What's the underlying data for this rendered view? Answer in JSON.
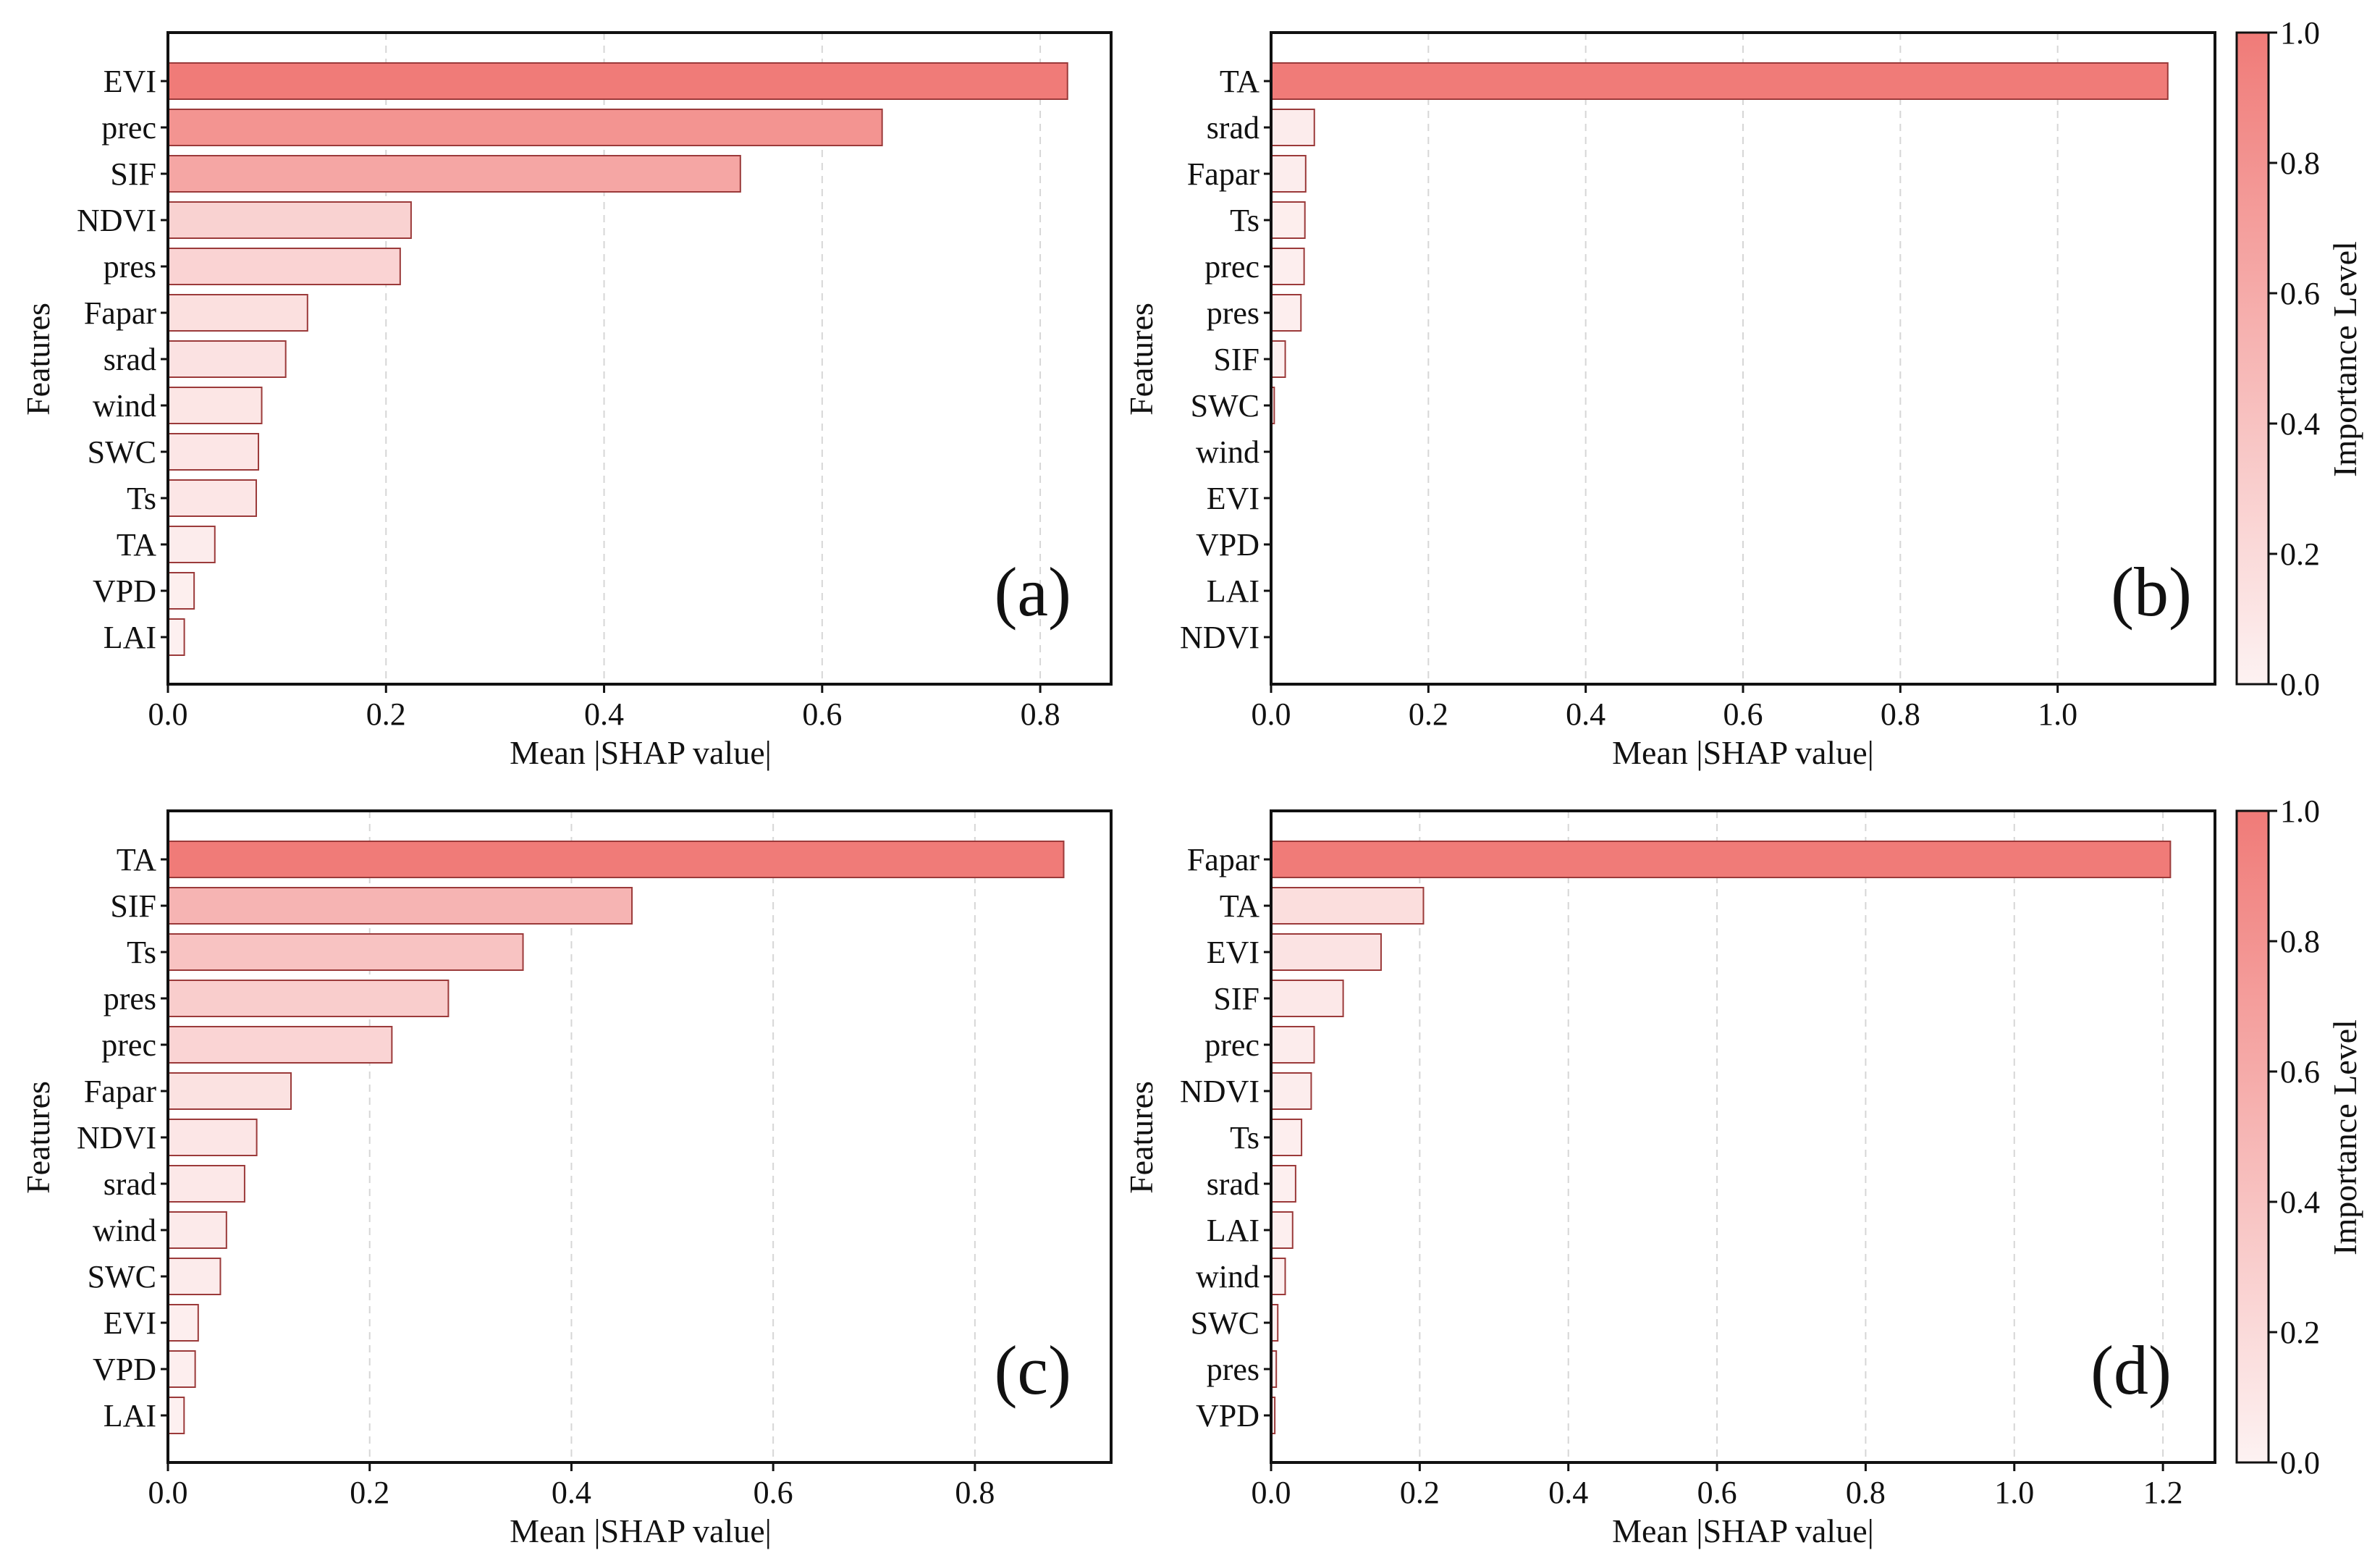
{
  "chart_data": [
    {
      "type": "bar",
      "orientation": "horizontal",
      "panel_label": "(a)",
      "xlabel": "Mean |SHAP value|",
      "ylabel": "Features",
      "xlim": [
        0,
        0.865
      ],
      "xticks": [
        0,
        0.2,
        0.4,
        0.6,
        0.8
      ],
      "xtick_labels": [
        "0.0",
        "0.2",
        "0.4",
        "0.6",
        "0.8"
      ],
      "grid": "vertical dashed",
      "categories": [
        "EVI",
        "prec",
        "SIF",
        "NDVI",
        "pres",
        "Fapar",
        "srad",
        "wind",
        "SWC",
        "Ts",
        "TA",
        "VPD",
        "LAI"
      ],
      "values": [
        0.825,
        0.655,
        0.525,
        0.223,
        0.213,
        0.128,
        0.108,
        0.086,
        0.083,
        0.081,
        0.043,
        0.024,
        0.015
      ]
    },
    {
      "type": "bar",
      "orientation": "horizontal",
      "panel_label": "(b)",
      "xlabel": "Mean |SHAP value|",
      "ylabel": "Features",
      "xlim": [
        0,
        1.2
      ],
      "xticks": [
        0,
        0.2,
        0.4,
        0.6,
        0.8,
        1.0
      ],
      "xtick_labels": [
        "0.0",
        "0.2",
        "0.4",
        "0.6",
        "0.8",
        "1.0"
      ],
      "grid": "vertical dashed",
      "categories": [
        "TA",
        "srad",
        "Fapar",
        "Ts",
        "prec",
        "pres",
        "SIF",
        "SWC",
        "wind",
        "EVI",
        "VPD",
        "LAI",
        "NDVI"
      ],
      "values": [
        1.14,
        0.055,
        0.044,
        0.043,
        0.042,
        0.038,
        0.018,
        0.004,
        0,
        0,
        0,
        0,
        0
      ]
    },
    {
      "type": "bar",
      "orientation": "horizontal",
      "panel_label": "(c)",
      "xlabel": "Mean |SHAP value|",
      "ylabel": "Features",
      "xlim": [
        0,
        0.935
      ],
      "xticks": [
        0,
        0.2,
        0.4,
        0.6,
        0.8
      ],
      "xtick_labels": [
        "0.0",
        "0.2",
        "0.4",
        "0.6",
        "0.8"
      ],
      "grid": "vertical dashed",
      "categories": [
        "TA",
        "SIF",
        "Ts",
        "pres",
        "prec",
        "Fapar",
        "NDVI",
        "srad",
        "wind",
        "SWC",
        "EVI",
        "VPD",
        "LAI"
      ],
      "values": [
        0.888,
        0.46,
        0.352,
        0.278,
        0.222,
        0.122,
        0.088,
        0.076,
        0.058,
        0.052,
        0.03,
        0.027,
        0.016
      ]
    },
    {
      "type": "bar",
      "orientation": "horizontal",
      "panel_label": "(d)",
      "xlabel": "Mean |SHAP value|",
      "ylabel": "Features",
      "xlim": [
        0,
        1.27
      ],
      "xticks": [
        0,
        0.2,
        0.4,
        0.6,
        0.8,
        1.0,
        1.2
      ],
      "xtick_labels": [
        "0.0",
        "0.2",
        "0.4",
        "0.6",
        "0.8",
        "1.0",
        "1.2"
      ],
      "grid": "vertical dashed",
      "categories": [
        "Fapar",
        "TA",
        "EVI",
        "SIF",
        "prec",
        "NDVI",
        "Ts",
        "srad",
        "LAI",
        "wind",
        "SWC",
        "pres",
        "VPD"
      ],
      "values": [
        1.21,
        0.205,
        0.148,
        0.097,
        0.058,
        0.054,
        0.041,
        0.033,
        0.029,
        0.019,
        0.009,
        0.007,
        0.005
      ]
    }
  ],
  "colorbar": {
    "label": "Importance Level",
    "ticks": [
      0.0,
      0.2,
      0.4,
      0.6,
      0.8,
      1.0
    ],
    "tick_labels": [
      "0.0",
      "0.2",
      "0.4",
      "0.6",
      "0.8",
      "1.0"
    ],
    "color_low": "#fdf2f2",
    "color_high": "#f07b78",
    "edge_color": "#9b3a3a"
  }
}
